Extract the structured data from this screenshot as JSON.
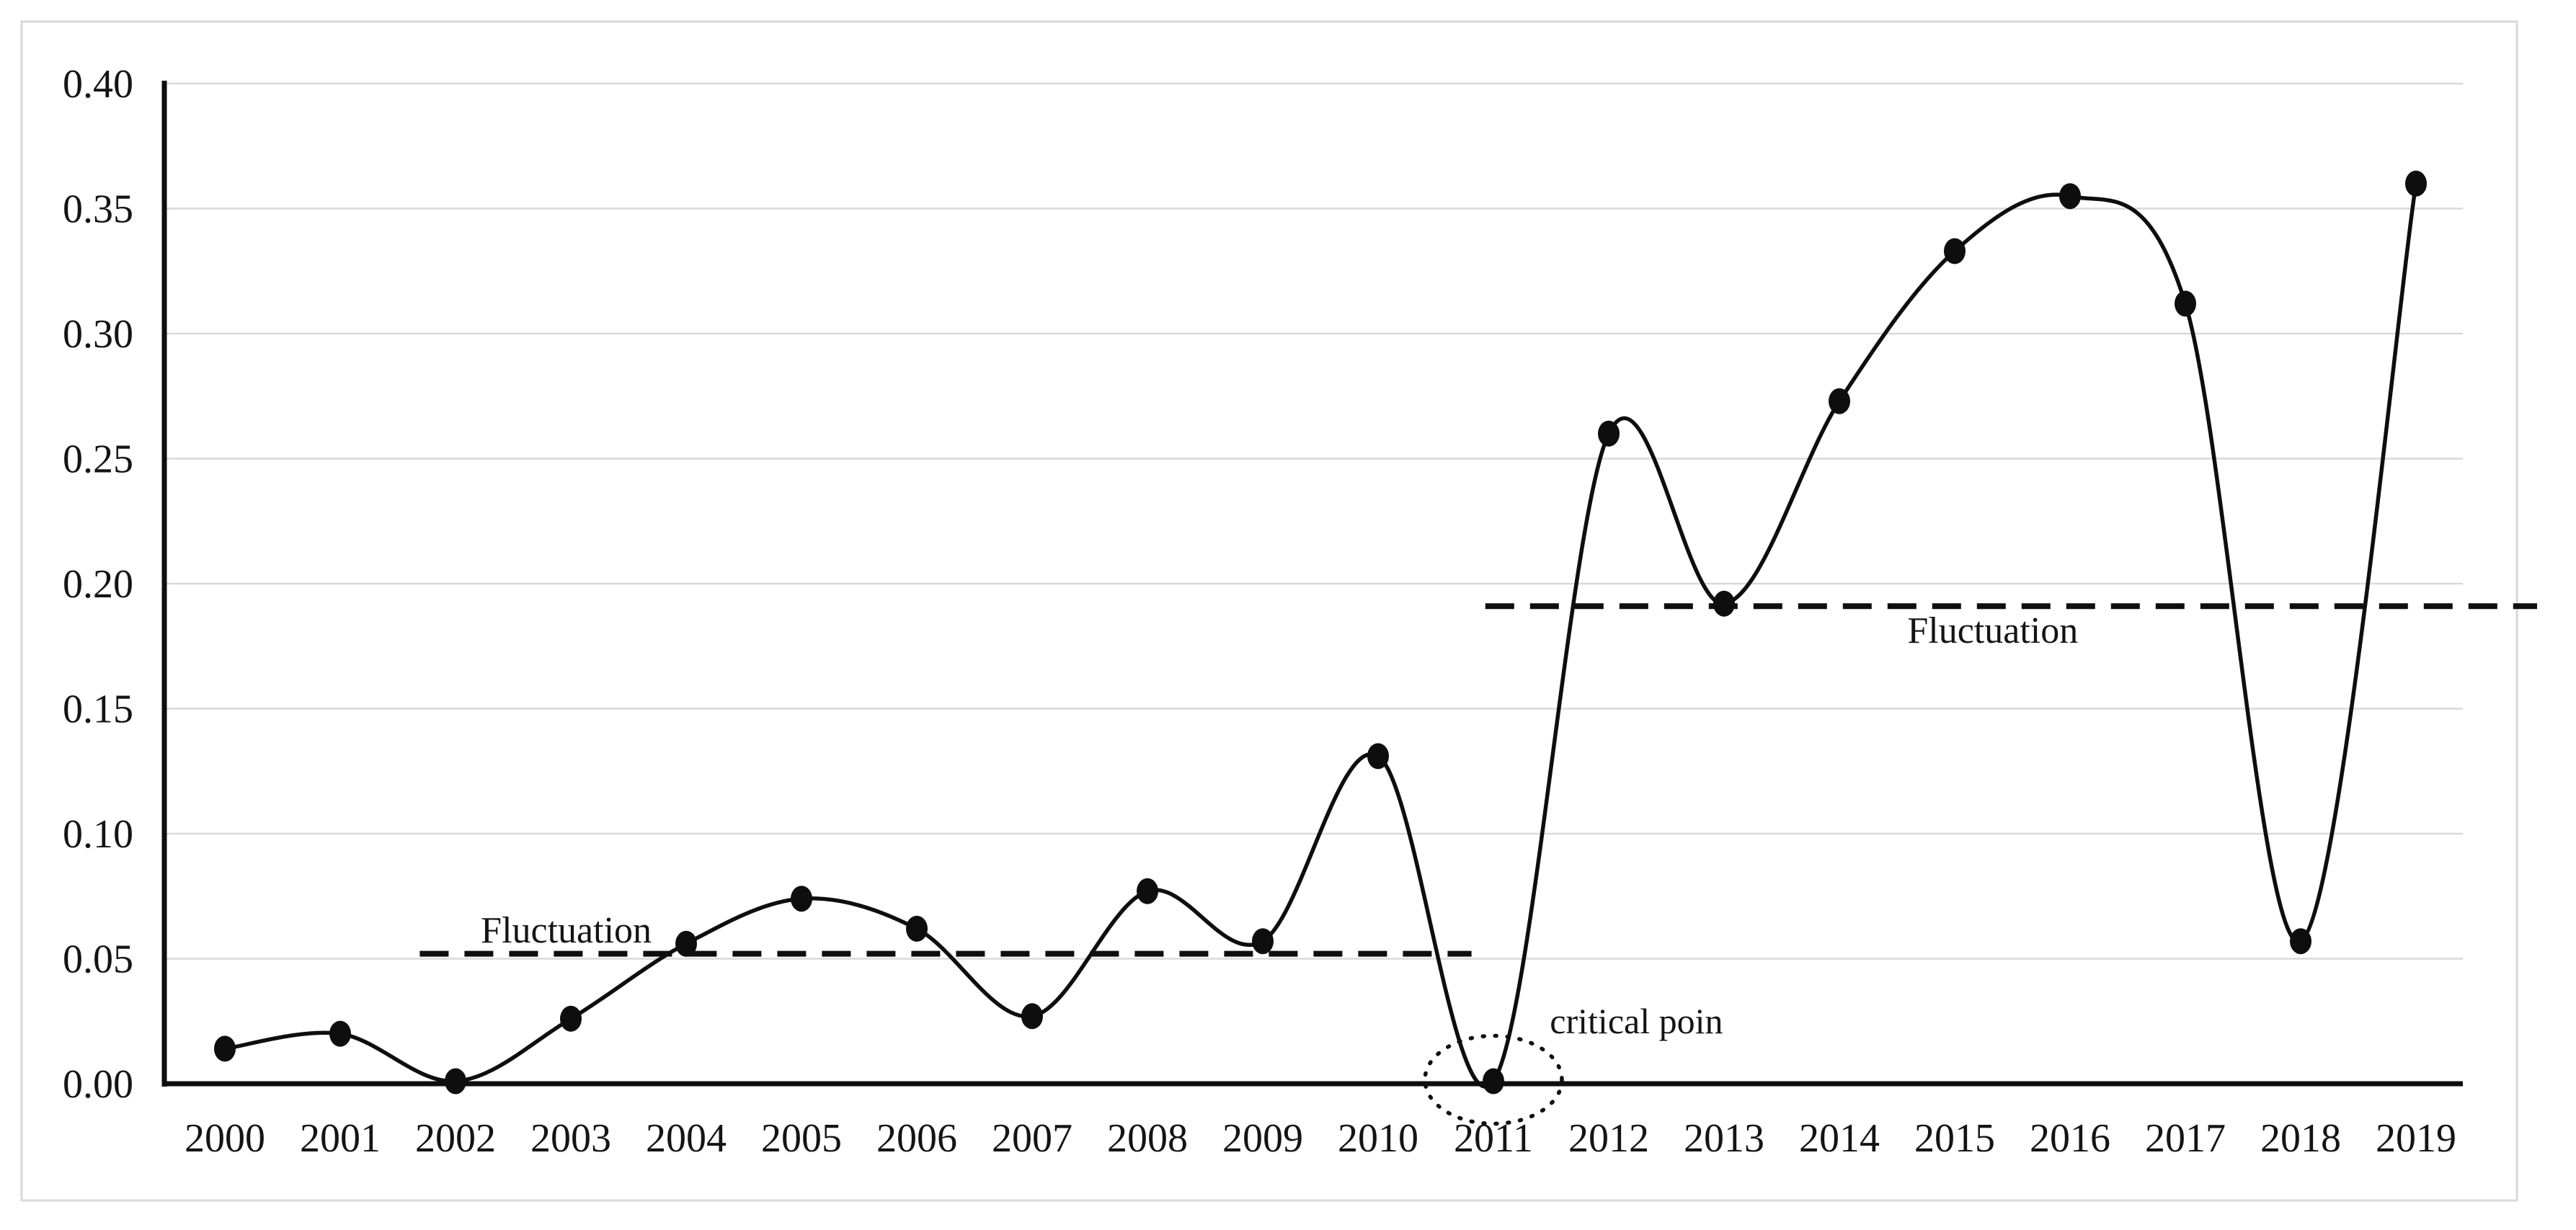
{
  "chart_data": {
    "type": "line",
    "title": "",
    "xlabel": "",
    "ylabel": "",
    "categories": [
      "2000",
      "2001",
      "2002",
      "2003",
      "2004",
      "2005",
      "2006",
      "2007",
      "2008",
      "2009",
      "2010",
      "2011",
      "2012",
      "2013",
      "2014",
      "2015",
      "2016",
      "2017",
      "2018",
      "2019"
    ],
    "series": [
      {
        "name": "series-1",
        "smoothed": true,
        "marker": "filled-oval",
        "values": [
          0.014,
          0.02,
          0.001,
          0.026,
          0.056,
          0.074,
          0.062,
          0.027,
          0.077,
          0.057,
          0.131,
          0.001,
          0.26,
          0.192,
          0.273,
          0.333,
          0.355,
          0.312,
          0.057,
          0.36
        ]
      }
    ],
    "ylim": [
      0.0,
      0.4
    ],
    "ytick_step": 0.05,
    "ytick_labels": [
      "0.00",
      "0.05",
      "0.10",
      "0.15",
      "0.20",
      "0.25",
      "0.30",
      "0.35",
      "0.40"
    ],
    "grid": true,
    "legend_position": "none",
    "annotations": {
      "dashed_lines": [
        {
          "id": "fluctuation-low",
          "label": "Fluctuation",
          "value": 0.052,
          "from_year_index": 1.69,
          "to_year_index": 10.81,
          "label_year_index": 2.96,
          "label_value": 0.0617,
          "label_side": "above"
        },
        {
          "id": "fluctuation-high",
          "label": "Fluctuation",
          "value": 0.191,
          "from_year_index": 10.93,
          "to_year_index": 20.05,
          "label_year_index": 15.33,
          "label_value": 0.1816,
          "label_side": "below"
        }
      ],
      "critical_point": {
        "label": "critical poin",
        "year": "2011",
        "year_index": 11,
        "value": 0.001,
        "label_year_index": 12.24,
        "label_value": 0.0254,
        "circled": true
      }
    },
    "colors": {
      "line": "#0e0e0e",
      "marker": "#0e0e0e",
      "axis": "#0e0e0e",
      "gridline": "#d9d9d9",
      "border": "#d9d9d9",
      "text": "#141414",
      "background": "#ffffff"
    }
  }
}
